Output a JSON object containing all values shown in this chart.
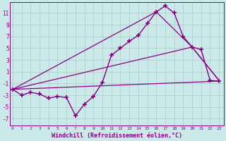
{
  "background_color": "#cbe9e8",
  "grid_color": "#b0d0cc",
  "line_color": "#880088",
  "xlabel": "Windchill (Refroidissement éolien,°C)",
  "xlabel_fontsize": 6.0,
  "ytick_labels": [
    "11",
    "9",
    "7",
    "5",
    "3",
    "1",
    "-1",
    "-3",
    "-5",
    "-7"
  ],
  "ytick_vals": [
    11,
    9,
    7,
    5,
    3,
    1,
    -1,
    -3,
    -5,
    -7
  ],
  "xtick_vals": [
    0,
    1,
    2,
    3,
    4,
    5,
    6,
    7,
    8,
    9,
    10,
    11,
    12,
    13,
    14,
    15,
    16,
    17,
    18,
    19,
    20,
    21,
    22,
    23
  ],
  "xlim": [
    -0.3,
    23.5
  ],
  "ylim": [
    -8.2,
    12.8
  ],
  "series": [
    {
      "x": [
        0,
        1,
        2,
        3,
        4,
        5,
        6,
        7,
        8,
        9,
        10,
        11,
        12,
        13,
        14,
        15,
        16,
        17,
        18,
        19,
        20,
        21,
        22,
        23
      ],
      "y": [
        -2.0,
        -3.0,
        -2.5,
        -2.8,
        -3.5,
        -3.2,
        -3.4,
        -6.5,
        -4.5,
        -3.2,
        -0.8,
        3.8,
        5.0,
        6.2,
        7.2,
        9.2,
        11.2,
        12.2,
        11.0,
        7.0,
        5.2,
        4.8,
        -0.5,
        -0.6
      ],
      "marker": "+",
      "markersize": 5,
      "linewidth": 1.0,
      "zorder": 4
    },
    {
      "x": [
        0,
        16,
        20,
        23
      ],
      "y": [
        -2.0,
        11.2,
        5.2,
        -0.5
      ],
      "marker": null,
      "linewidth": 0.9,
      "zorder": 3
    },
    {
      "x": [
        0,
        23
      ],
      "y": [
        -2.0,
        -0.6
      ],
      "marker": null,
      "linewidth": 0.9,
      "zorder": 3
    },
    {
      "x": [
        0,
        20,
        23
      ],
      "y": [
        -2.0,
        5.2,
        -0.5
      ],
      "marker": null,
      "linewidth": 0.9,
      "zorder": 3
    }
  ]
}
